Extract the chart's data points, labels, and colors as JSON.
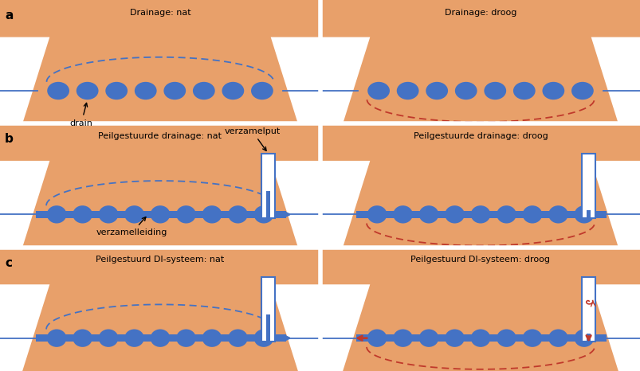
{
  "soil_color": "#E8A06A",
  "white": "#FFFFFF",
  "blue": "#4472C4",
  "red_dashed": "#C0392B",
  "panel_titles": [
    [
      "Drainage: nat",
      "Drainage: droog"
    ],
    [
      "Peilgestuurde drainage: nat",
      "Peilgestuurde drainage: droog"
    ],
    [
      "Peilgestuurd DI-systeem: nat",
      "Peilgestuurd DI-systeem: droog"
    ]
  ],
  "row_labels": [
    "a",
    "b",
    "c"
  ],
  "label_drain": "drain",
  "label_verzamelput": "verzamelput",
  "label_verzamelleiding": "verzamelleiding",
  "n_drains_a": 8,
  "n_drains_bc": 9,
  "fig_w": 8.04,
  "fig_h": 4.66,
  "dpi": 100
}
